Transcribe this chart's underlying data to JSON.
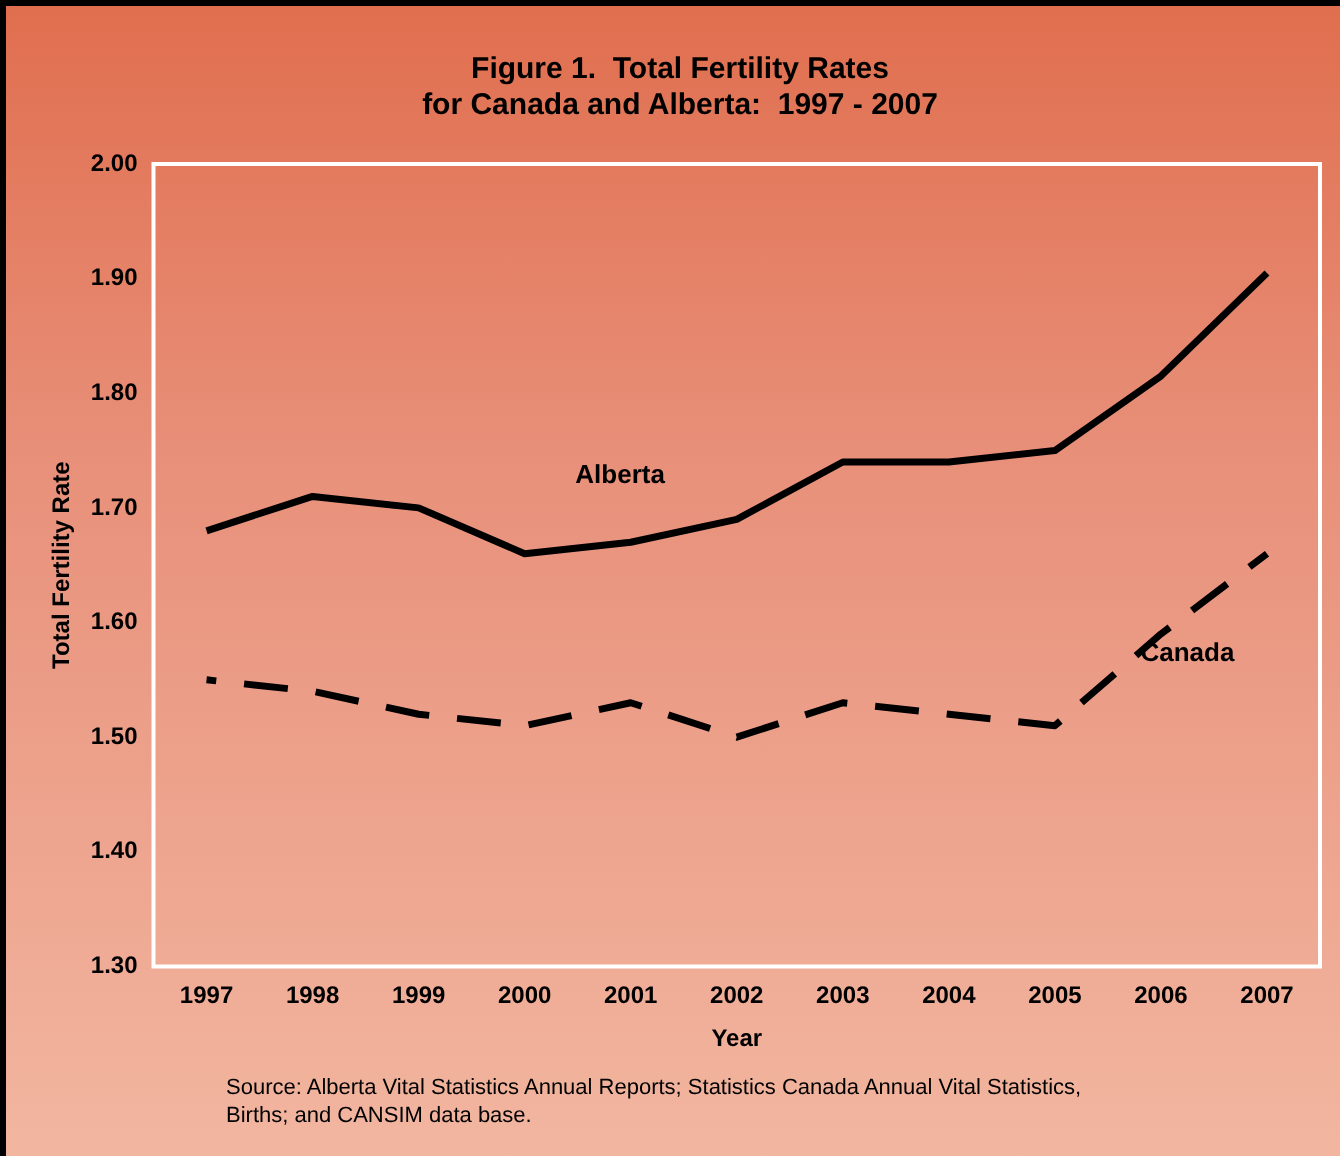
{
  "chart_data": {
    "type": "line",
    "title": "Figure 1.  Total Fertility Rates\nfor Canada and Alberta:  1997 - 2007",
    "xlabel": "Year",
    "ylabel": "Total Fertility Rate",
    "categories": [
      "1997",
      "1998",
      "1999",
      "2000",
      "2001",
      "2002",
      "2003",
      "2004",
      "2005",
      "2006",
      "2007"
    ],
    "series": [
      {
        "name": "Alberta",
        "color": "#000000",
        "line_style": "solid",
        "values": [
          1.68,
          1.71,
          1.7,
          1.66,
          1.67,
          1.69,
          1.74,
          1.74,
          1.75,
          1.815,
          1.905
        ]
      },
      {
        "name": "Canada",
        "color": "#000000",
        "line_style": "dashed",
        "values": [
          1.55,
          1.54,
          1.52,
          1.51,
          1.53,
          1.5,
          1.53,
          1.52,
          1.51,
          1.59,
          1.66
        ]
      }
    ],
    "ylim": [
      1.3,
      2.0
    ],
    "yticks": [
      {
        "value": 1.3,
        "label": "1.30"
      },
      {
        "value": 1.4,
        "label": "1.40"
      },
      {
        "value": 1.5,
        "label": "1.50"
      },
      {
        "value": 1.6,
        "label": "1.60"
      },
      {
        "value": 1.7,
        "label": "1.70"
      },
      {
        "value": 1.8,
        "label": "1.80"
      },
      {
        "value": 1.9,
        "label": "1.90"
      },
      {
        "value": 2.0,
        "label": "2.00"
      }
    ],
    "grid": false,
    "legend": false,
    "marker": "none",
    "annotations": [
      "Source:  Alberta Vital Statistics Annual Reports; Statistics Canada Annual Vital Statistics,\nBirths; and CANSIM data base."
    ]
  }
}
